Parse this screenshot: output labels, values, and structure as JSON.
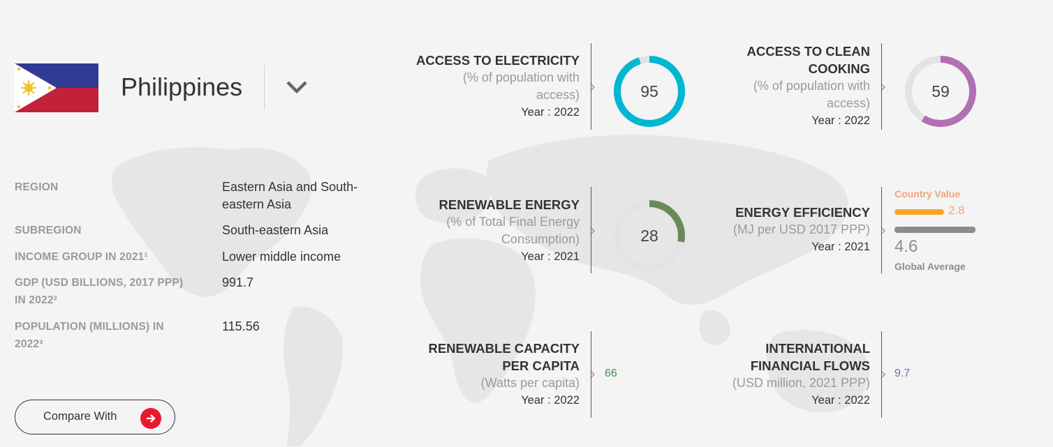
{
  "header": {
    "country": "Philippines"
  },
  "info": {
    "rows": [
      {
        "label_lines": [
          "REGION"
        ],
        "value_lines": [
          "Eastern Asia and South-",
          "eastern Asia"
        ]
      },
      {
        "label_lines": [
          "SUBREGION"
        ],
        "value_lines": [
          "South-eastern Asia"
        ]
      },
      {
        "label_lines": [
          "INCOME GROUP IN 2021¹"
        ],
        "value_lines": [
          "Lower middle income"
        ]
      },
      {
        "label_lines": [
          "GDP (USD BILLIONS, 2017 PPP)",
          "IN 2022²"
        ],
        "value_lines": [
          "991.7"
        ]
      },
      {
        "label_lines": [
          "POPULATION (MILLIONS) IN",
          "2022³"
        ],
        "value_lines": [
          "115.56"
        ]
      }
    ]
  },
  "compare_button": {
    "label": "Compare With"
  },
  "metrics": {
    "electricity": {
      "title_lines": [
        "ACCESS TO ELECTRICITY"
      ],
      "unit_lines": [
        "(% of population with",
        "access)"
      ],
      "year": "Year : 2022",
      "value": "95",
      "percent": 95,
      "color": "#00b7d1"
    },
    "clean_cooking": {
      "title_lines": [
        "ACCESS TO CLEAN",
        "COOKING"
      ],
      "unit_lines": [
        "(% of population with",
        "access)"
      ],
      "year": "Year : 2022",
      "value": "59",
      "percent": 59,
      "color": "#b26fb4"
    },
    "renewable_energy": {
      "title_lines": [
        "RENEWABLE ENERGY"
      ],
      "unit_lines": [
        "(% of Total Final Energy",
        "Consumption)"
      ],
      "year": "Year : 2021",
      "value": "28",
      "percent": 28,
      "color": "#6a8a5a"
    },
    "energy_efficiency": {
      "title_lines": [
        "ENERGY EFFICIENCY"
      ],
      "unit_lines": [
        "(MJ per USD 2017 PPP)"
      ],
      "year": "Year : 2021",
      "country_value_label": "Country Value",
      "country_value": 2.8,
      "country_value_text": "2.8",
      "global_average": 4.6,
      "global_average_text": "4.6",
      "global_average_label": "Global Average"
    },
    "renewable_capacity": {
      "title_lines": [
        "RENEWABLE CAPACITY",
        "PER CAPITA"
      ],
      "unit_lines": [
        "(Watts per capita)"
      ],
      "year": "Year : 2022",
      "value": "66",
      "color": "#3f8f55"
    },
    "financial_flows": {
      "title_lines": [
        "INTERNATIONAL",
        "FINANCIAL FLOWS"
      ],
      "unit_lines": [
        "(USD million, 2021 PPP)"
      ],
      "year": "Year : 2022",
      "value": "9.7",
      "color": "#6a6fb0"
    }
  }
}
